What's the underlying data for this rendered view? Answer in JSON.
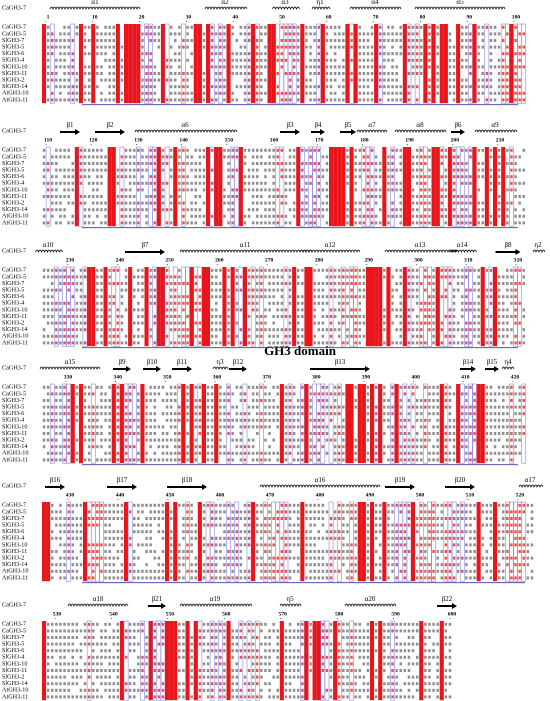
{
  "sequence_names": [
    "CaGH3-7",
    "CaGH3-5",
    "SlGH3-7",
    "SlGH3-5",
    "SlGH3-6",
    "SlGH3-4",
    "SlGH3-10",
    "SlGH3-11",
    "SlGH3-2",
    "SlGH3-14",
    "AtGH3-10",
    "AtGH3-11"
  ],
  "structure_label": "CaGH3-7",
  "blocks": [
    {
      "elements": [
        "α1",
        "α2",
        "α3",
        "η1",
        "α4",
        "α5"
      ],
      "ruler": [
        "1",
        "10",
        "20",
        "30",
        "40",
        "50",
        "60",
        "70",
        "80",
        "90",
        "100"
      ]
    },
    {
      "elements": [
        "β1",
        "β2",
        "α6",
        "β3",
        "β4",
        "β5",
        "α7",
        "α8",
        "β6",
        "α9"
      ],
      "ruler": [
        "110",
        "120",
        "130",
        "140",
        "150",
        "160",
        "170",
        "180",
        "190",
        "200",
        "210"
      ]
    },
    {
      "elements": [
        "α10",
        "β7",
        "α11",
        "α12",
        "α13",
        "α14",
        "β8",
        "η2"
      ],
      "ruler": [
        "230",
        "240",
        "250",
        "260",
        "270",
        "280",
        "290",
        "300",
        "310",
        "320"
      ]
    },
    {
      "elements": [
        "α15",
        "β9",
        "β10",
        "β11",
        "η3",
        "β12",
        "β13",
        "β14",
        "β15",
        "η4"
      ],
      "ruler": [
        "330",
        "340",
        "350",
        "360",
        "370",
        "380",
        "390",
        "400",
        "410",
        "420"
      ]
    },
    {
      "elements": [
        "β16",
        "β17",
        "β18",
        "α16",
        "β19",
        "β20",
        "α17"
      ],
      "ruler": [
        "430",
        "440",
        "450",
        "460",
        "470",
        "480",
        "490",
        "500",
        "510",
        "520"
      ]
    },
    {
      "elements": [
        "α18",
        "β21",
        "α19",
        "η5",
        "α20",
        "β22"
      ],
      "ruler": [
        "530",
        "540",
        "550",
        "560",
        "570",
        "580",
        "590",
        "600"
      ]
    }
  ],
  "domain_label": "GH3 domain"
}
